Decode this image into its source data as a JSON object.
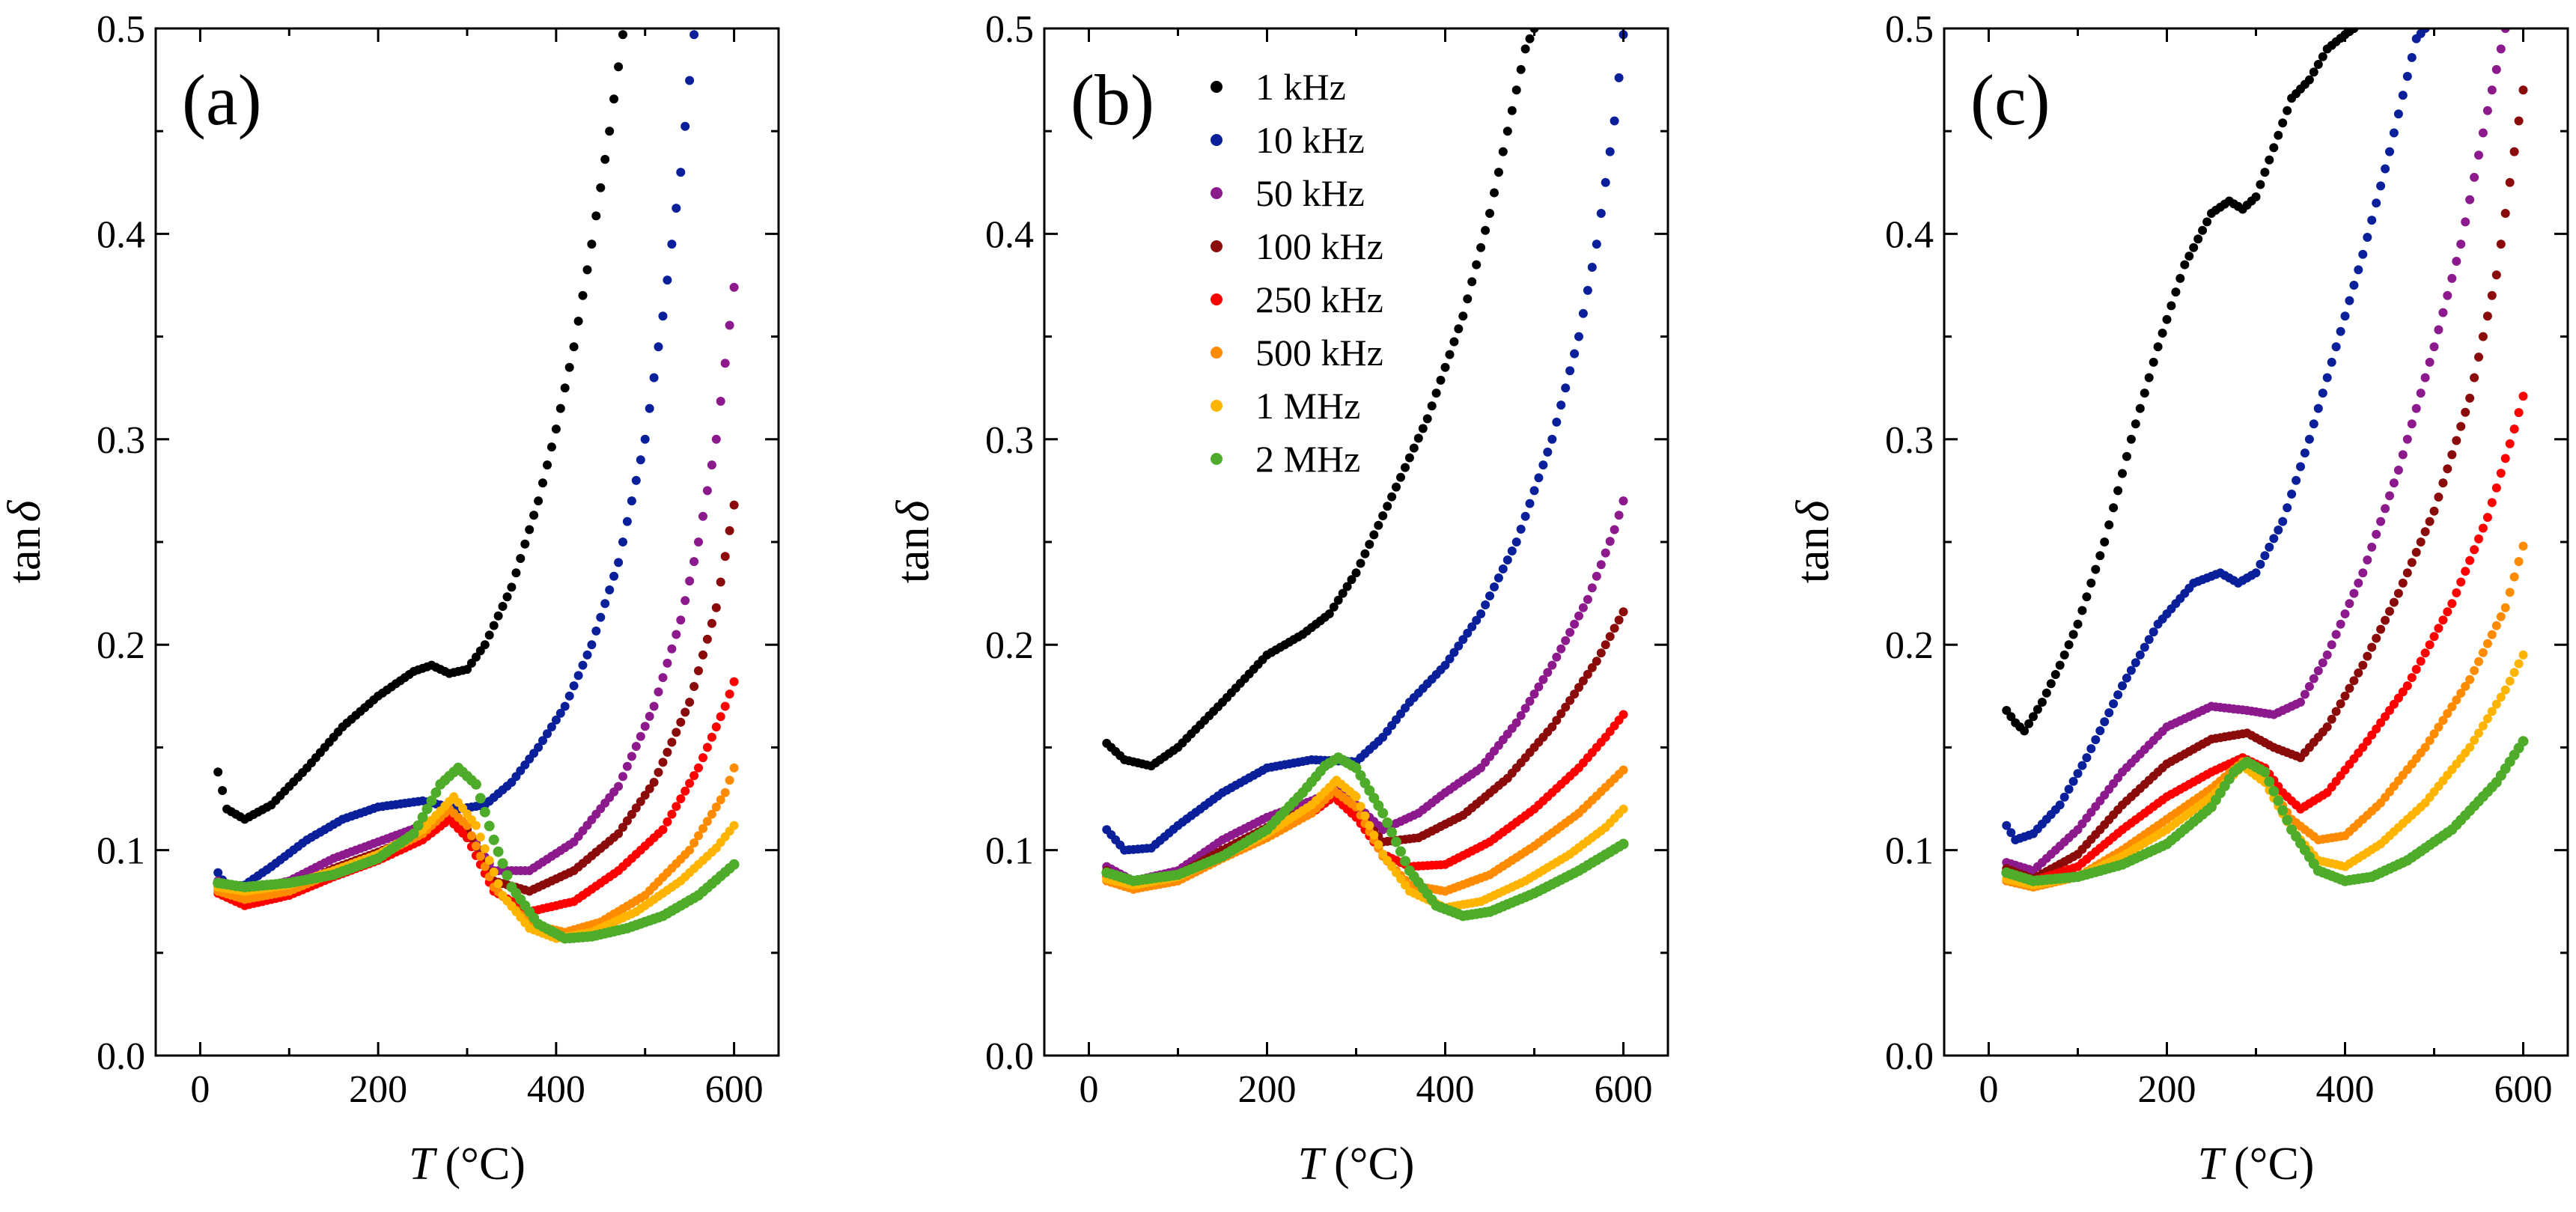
{
  "figure": {
    "xlabel_italic": "T",
    "xlabel_unit": "(°C)",
    "ylabel_main": "tan",
    "ylabel_symbol": "δ"
  },
  "chart_data": [
    {
      "type": "scatter",
      "panel_label": "(a)",
      "xlabel": "T (°C)",
      "ylabel": "tanδ",
      "xlim": [
        -50,
        650
      ],
      "ylim": [
        0,
        0.5
      ],
      "xticks": [
        0,
        200,
        400,
        600
      ],
      "yticks": [
        "0.0",
        "0.1",
        "0.2",
        "0.3",
        "0.4",
        "0.5"
      ],
      "series": [
        {
          "name": "1 kHz",
          "color": "#000000",
          "x": [
            20,
            30,
            50,
            80,
            120,
            160,
            200,
            240,
            260,
            280,
            300,
            320,
            350,
            380,
            400,
            420,
            440,
            460,
            475
          ],
          "y": [
            0.138,
            0.12,
            0.115,
            0.122,
            0.14,
            0.16,
            0.175,
            0.187,
            0.19,
            0.186,
            0.188,
            0.2,
            0.228,
            0.27,
            0.305,
            0.345,
            0.395,
            0.45,
            0.497
          ]
        },
        {
          "name": "10 kHz",
          "color": "#0a1f9a",
          "x": [
            20,
            30,
            50,
            80,
            120,
            160,
            200,
            250,
            290,
            320,
            350,
            380,
            410,
            440,
            470,
            500,
            520,
            540,
            555
          ],
          "y": [
            0.089,
            0.082,
            0.083,
            0.092,
            0.105,
            0.115,
            0.121,
            0.124,
            0.12,
            0.122,
            0.133,
            0.15,
            0.17,
            0.2,
            0.24,
            0.3,
            0.36,
            0.43,
            0.497
          ]
        },
        {
          "name": "50 kHz",
          "color": "#8c1a8c",
          "x": [
            20,
            50,
            100,
            150,
            200,
            250,
            280,
            300,
            330,
            370,
            420,
            470,
            510,
            540,
            560,
            580,
            600
          ],
          "y": [
            0.085,
            0.08,
            0.085,
            0.096,
            0.104,
            0.112,
            0.118,
            0.11,
            0.09,
            0.09,
            0.104,
            0.131,
            0.17,
            0.212,
            0.25,
            0.3,
            0.374
          ]
        },
        {
          "name": "100 kHz",
          "color": "#8b0a0a",
          "x": [
            20,
            50,
            100,
            150,
            200,
            250,
            280,
            300,
            330,
            370,
            420,
            470,
            510,
            550,
            580,
            600
          ],
          "y": [
            0.082,
            0.077,
            0.081,
            0.091,
            0.099,
            0.108,
            0.118,
            0.11,
            0.085,
            0.08,
            0.09,
            0.108,
            0.133,
            0.172,
            0.218,
            0.268
          ]
        },
        {
          "name": "250 kHz",
          "color": "#ff0000",
          "x": [
            20,
            50,
            100,
            150,
            200,
            250,
            280,
            300,
            330,
            370,
            420,
            470,
            520,
            560,
            590,
            600
          ],
          "y": [
            0.079,
            0.073,
            0.078,
            0.087,
            0.095,
            0.105,
            0.115,
            0.106,
            0.08,
            0.07,
            0.075,
            0.09,
            0.11,
            0.14,
            0.17,
            0.182
          ]
        },
        {
          "name": "500 kHz",
          "color": "#ff8c00",
          "x": [
            20,
            50,
            100,
            150,
            200,
            250,
            280,
            300,
            330,
            370,
            410,
            450,
            500,
            550,
            590,
            600
          ],
          "y": [
            0.08,
            0.076,
            0.08,
            0.089,
            0.097,
            0.108,
            0.12,
            0.112,
            0.082,
            0.064,
            0.06,
            0.065,
            0.078,
            0.1,
            0.128,
            0.14
          ]
        },
        {
          "name": "1 MHz",
          "color": "#ffb400",
          "x": [
            20,
            50,
            100,
            150,
            200,
            250,
            285,
            310,
            340,
            370,
            400,
            440,
            490,
            540,
            580,
            600
          ],
          "y": [
            0.082,
            0.08,
            0.083,
            0.09,
            0.098,
            0.11,
            0.126,
            0.112,
            0.078,
            0.062,
            0.057,
            0.06,
            0.07,
            0.085,
            0.101,
            0.112
          ]
        },
        {
          "name": "2 MHz",
          "color": "#4fac2a",
          "x": [
            20,
            50,
            100,
            150,
            200,
            240,
            270,
            290,
            310,
            330,
            350,
            380,
            410,
            440,
            480,
            520,
            560,
            600
          ],
          "y": [
            0.084,
            0.082,
            0.084,
            0.088,
            0.096,
            0.108,
            0.132,
            0.14,
            0.132,
            0.105,
            0.082,
            0.064,
            0.057,
            0.058,
            0.062,
            0.068,
            0.078,
            0.093
          ]
        }
      ]
    },
    {
      "type": "scatter",
      "panel_label": "(b)",
      "xlabel": "T (°C)",
      "ylabel": "tanδ",
      "xlim": [
        -50,
        650
      ],
      "ylim": [
        0,
        0.5
      ],
      "xticks": [
        0,
        200,
        400,
        600
      ],
      "yticks": [
        "0.0",
        "0.1",
        "0.2",
        "0.3",
        "0.4",
        "0.5"
      ],
      "legend": [
        "1 kHz",
        "10 kHz",
        "50 kHz",
        "100 kHz",
        "250 kHz",
        "500 kHz",
        "1 MHz",
        "2 MHz"
      ],
      "series": [
        {
          "name": "1 kHz",
          "color": "#000000",
          "x": [
            20,
            40,
            70,
            100,
            150,
            200,
            240,
            270,
            300,
            340,
            380,
            420,
            450,
            470,
            490,
            500
          ],
          "y": [
            0.152,
            0.144,
            0.141,
            0.15,
            0.172,
            0.195,
            0.205,
            0.215,
            0.235,
            0.272,
            0.31,
            0.36,
            0.41,
            0.45,
            0.49,
            0.5
          ]
        },
        {
          "name": "10 kHz",
          "color": "#0a1f9a",
          "x": [
            20,
            40,
            70,
            100,
            150,
            200,
            250,
            300,
            330,
            360,
            400,
            440,
            480,
            520,
            550,
            570,
            590,
            600
          ],
          "y": [
            0.11,
            0.1,
            0.101,
            0.112,
            0.128,
            0.14,
            0.144,
            0.143,
            0.155,
            0.172,
            0.19,
            0.215,
            0.25,
            0.3,
            0.35,
            0.395,
            0.455,
            0.497
          ]
        },
        {
          "name": "50 kHz",
          "color": "#8c1a8c",
          "x": [
            20,
            50,
            100,
            150,
            200,
            250,
            280,
            300,
            330,
            370,
            400,
            440,
            480,
            520,
            560,
            590,
            600
          ],
          "y": [
            0.092,
            0.085,
            0.09,
            0.105,
            0.116,
            0.124,
            0.13,
            0.122,
            0.11,
            0.118,
            0.128,
            0.14,
            0.162,
            0.19,
            0.222,
            0.256,
            0.27
          ]
        },
        {
          "name": "100 kHz",
          "color": "#8b0a0a",
          "x": [
            20,
            50,
            100,
            150,
            200,
            250,
            275,
            300,
            330,
            370,
            420,
            470,
            520,
            570,
            600
          ],
          "y": [
            0.09,
            0.082,
            0.088,
            0.1,
            0.111,
            0.121,
            0.128,
            0.12,
            0.104,
            0.106,
            0.117,
            0.135,
            0.16,
            0.192,
            0.216
          ]
        },
        {
          "name": "250 kHz",
          "color": "#ff0000",
          "x": [
            20,
            50,
            100,
            150,
            200,
            250,
            275,
            300,
            330,
            360,
            400,
            450,
            500,
            550,
            580,
            600
          ],
          "y": [
            0.087,
            0.081,
            0.086,
            0.097,
            0.107,
            0.118,
            0.126,
            0.116,
            0.098,
            0.092,
            0.093,
            0.104,
            0.12,
            0.14,
            0.155,
            0.166
          ]
        },
        {
          "name": "500 kHz",
          "color": "#ff8c00",
          "x": [
            20,
            50,
            100,
            150,
            200,
            250,
            275,
            300,
            330,
            360,
            400,
            450,
            500,
            550,
            600
          ],
          "y": [
            0.085,
            0.081,
            0.085,
            0.096,
            0.106,
            0.118,
            0.129,
            0.121,
            0.097,
            0.083,
            0.08,
            0.088,
            0.102,
            0.118,
            0.139
          ]
        },
        {
          "name": "1 MHz",
          "color": "#ffb400",
          "x": [
            20,
            50,
            100,
            150,
            200,
            250,
            278,
            300,
            330,
            360,
            400,
            440,
            490,
            540,
            580,
            600
          ],
          "y": [
            0.086,
            0.083,
            0.087,
            0.097,
            0.108,
            0.122,
            0.134,
            0.126,
            0.098,
            0.08,
            0.072,
            0.075,
            0.085,
            0.098,
            0.111,
            0.12
          ]
        },
        {
          "name": "2 MHz",
          "color": "#4fac2a",
          "x": [
            20,
            50,
            100,
            150,
            200,
            240,
            265,
            280,
            300,
            330,
            360,
            390,
            420,
            450,
            500,
            550,
            600
          ],
          "y": [
            0.089,
            0.085,
            0.088,
            0.097,
            0.11,
            0.128,
            0.141,
            0.145,
            0.14,
            0.118,
            0.09,
            0.073,
            0.068,
            0.07,
            0.079,
            0.09,
            0.103
          ]
        }
      ]
    },
    {
      "type": "scatter",
      "panel_label": "(c)",
      "xlabel": "T (°C)",
      "ylabel": "tanδ",
      "xlim": [
        -50,
        650
      ],
      "ylim": [
        0,
        0.5
      ],
      "xticks": [
        0,
        200,
        400,
        600
      ],
      "yticks": [
        "0.0",
        "0.1",
        "0.2",
        "0.3",
        "0.4",
        "0.5"
      ],
      "series": [
        {
          "name": "1 kHz",
          "color": "#000000",
          "x": [
            20,
            30,
            40,
            60,
            80,
            100,
            130,
            160,
            190,
            220,
            250,
            270,
            285,
            300,
            320,
            340,
            360,
            380,
            400,
            410
          ],
          "y": [
            0.168,
            0.162,
            0.158,
            0.172,
            0.19,
            0.21,
            0.25,
            0.3,
            0.345,
            0.385,
            0.41,
            0.416,
            0.412,
            0.418,
            0.442,
            0.466,
            0.475,
            0.49,
            0.497,
            0.5
          ]
        },
        {
          "name": "10 kHz",
          "color": "#0a1f9a",
          "x": [
            20,
            30,
            50,
            80,
            110,
            150,
            190,
            230,
            260,
            280,
            300,
            330,
            360,
            390,
            420,
            450,
            480,
            490
          ],
          "y": [
            0.112,
            0.105,
            0.108,
            0.122,
            0.145,
            0.18,
            0.21,
            0.23,
            0.235,
            0.23,
            0.235,
            0.26,
            0.3,
            0.345,
            0.39,
            0.44,
            0.495,
            0.5
          ]
        },
        {
          "name": "50 kHz",
          "color": "#8c1a8c",
          "x": [
            20,
            50,
            100,
            150,
            200,
            250,
            290,
            320,
            350,
            380,
            420,
            460,
            500,
            530,
            560,
            580
          ],
          "y": [
            0.094,
            0.09,
            0.11,
            0.138,
            0.16,
            0.17,
            0.168,
            0.166,
            0.172,
            0.195,
            0.235,
            0.285,
            0.345,
            0.395,
            0.46,
            0.5
          ]
        },
        {
          "name": "100 kHz",
          "color": "#8b0a0a",
          "x": [
            20,
            50,
            100,
            150,
            200,
            250,
            290,
            320,
            350,
            380,
            420,
            460,
            500,
            540,
            570,
            600
          ],
          "y": [
            0.091,
            0.086,
            0.098,
            0.122,
            0.142,
            0.154,
            0.157,
            0.15,
            0.145,
            0.16,
            0.19,
            0.225,
            0.265,
            0.32,
            0.38,
            0.47
          ]
        },
        {
          "name": "250 kHz",
          "color": "#ff0000",
          "x": [
            20,
            50,
            100,
            150,
            200,
            250,
            285,
            310,
            330,
            350,
            380,
            420,
            470,
            520,
            560,
            590,
            600
          ],
          "y": [
            0.089,
            0.085,
            0.092,
            0.11,
            0.126,
            0.138,
            0.145,
            0.14,
            0.128,
            0.12,
            0.128,
            0.15,
            0.18,
            0.22,
            0.262,
            0.305,
            0.321
          ]
        },
        {
          "name": "500 kHz",
          "color": "#ff8c00",
          "x": [
            20,
            50,
            100,
            150,
            200,
            250,
            285,
            310,
            340,
            370,
            400,
            440,
            490,
            540,
            580,
            600
          ],
          "y": [
            0.085,
            0.082,
            0.087,
            0.1,
            0.115,
            0.13,
            0.143,
            0.135,
            0.115,
            0.105,
            0.107,
            0.123,
            0.15,
            0.183,
            0.218,
            0.248
          ]
        },
        {
          "name": "1 MHz",
          "color": "#ffb400",
          "x": [
            20,
            50,
            100,
            150,
            200,
            250,
            285,
            310,
            340,
            370,
            400,
            440,
            490,
            540,
            580,
            600
          ],
          "y": [
            0.086,
            0.083,
            0.087,
            0.097,
            0.11,
            0.126,
            0.141,
            0.133,
            0.11,
            0.095,
            0.092,
            0.103,
            0.123,
            0.15,
            0.178,
            0.195
          ]
        },
        {
          "name": "2 MHz",
          "color": "#4fac2a",
          "x": [
            20,
            50,
            100,
            150,
            200,
            250,
            275,
            290,
            310,
            340,
            370,
            400,
            430,
            470,
            520,
            570,
            600
          ],
          "y": [
            0.089,
            0.085,
            0.087,
            0.093,
            0.103,
            0.121,
            0.138,
            0.143,
            0.138,
            0.11,
            0.09,
            0.085,
            0.087,
            0.095,
            0.11,
            0.133,
            0.153
          ]
        }
      ]
    }
  ]
}
